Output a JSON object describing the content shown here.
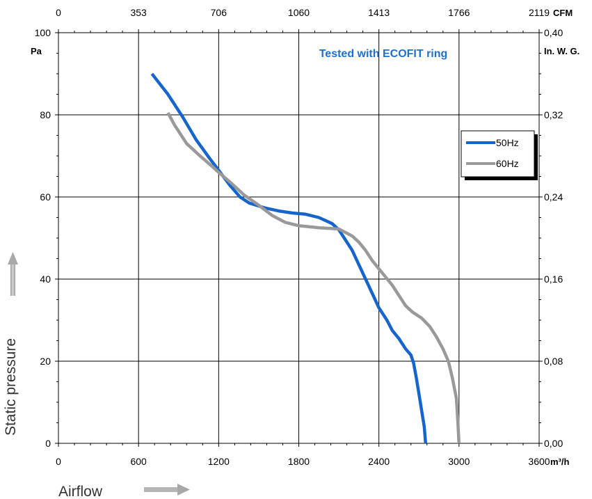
{
  "chart_data": {
    "type": "line",
    "annotation": "Tested with ECOFIT ring",
    "xlabel": "Airflow",
    "ylabel": "Static pressure",
    "x_axis": {
      "unit": "m³/h",
      "ticks": [
        "0",
        "600",
        "1200",
        "1800",
        "2400",
        "3000",
        "3600"
      ],
      "range": [
        0,
        3600
      ]
    },
    "x2_axis": {
      "unit": "CFM",
      "ticks": [
        "0",
        "353",
        "706",
        "1060",
        "1413",
        "1766",
        "2119"
      ]
    },
    "y_axis": {
      "unit": "Pa",
      "ticks": [
        "0",
        "20",
        "40",
        "60",
        "80",
        "100"
      ],
      "range": [
        0,
        100
      ]
    },
    "y2_axis": {
      "unit": "In. W. G.",
      "ticks": [
        "0,00",
        "0,08",
        "0,16",
        "0,24",
        "0,32",
        "0,40"
      ]
    },
    "grid": true,
    "legend_position": "right",
    "series": [
      {
        "name": "50Hz",
        "color": "#1565cc",
        "points": [
          [
            700,
            90
          ],
          [
            820,
            85
          ],
          [
            930,
            79.5
          ],
          [
            1030,
            74
          ],
          [
            1130,
            69.5
          ],
          [
            1200,
            66.5
          ],
          [
            1280,
            63
          ],
          [
            1360,
            60
          ],
          [
            1430,
            58.5
          ],
          [
            1550,
            57.3
          ],
          [
            1650,
            56.6
          ],
          [
            1750,
            56.1
          ],
          [
            1850,
            55.8
          ],
          [
            1950,
            55
          ],
          [
            2050,
            53.5
          ],
          [
            2100,
            52
          ],
          [
            2150,
            49.5
          ],
          [
            2200,
            47
          ],
          [
            2250,
            43.5
          ],
          [
            2300,
            40
          ],
          [
            2350,
            36.5
          ],
          [
            2400,
            33
          ],
          [
            2460,
            30
          ],
          [
            2500,
            27.5
          ],
          [
            2550,
            25.5
          ],
          [
            2600,
            23
          ],
          [
            2640,
            21.5
          ],
          [
            2660,
            19.5
          ],
          [
            2680,
            16
          ],
          [
            2700,
            12
          ],
          [
            2720,
            8
          ],
          [
            2740,
            4
          ],
          [
            2750,
            0
          ]
        ]
      },
      {
        "name": "60Hz",
        "color": "#999999",
        "points": [
          [
            820,
            80.5
          ],
          [
            870,
            77.5
          ],
          [
            960,
            73
          ],
          [
            1060,
            70
          ],
          [
            1150,
            67.5
          ],
          [
            1200,
            66
          ],
          [
            1290,
            63.5
          ],
          [
            1390,
            60.5
          ],
          [
            1500,
            58
          ],
          [
            1600,
            55.5
          ],
          [
            1700,
            53.8
          ],
          [
            1800,
            53
          ],
          [
            1950,
            52.5
          ],
          [
            2100,
            52.2
          ],
          [
            2200,
            50.5
          ],
          [
            2250,
            49
          ],
          [
            2300,
            47
          ],
          [
            2350,
            44.5
          ],
          [
            2400,
            42.5
          ],
          [
            2450,
            40.5
          ],
          [
            2500,
            38.5
          ],
          [
            2550,
            36
          ],
          [
            2600,
            33.5
          ],
          [
            2650,
            32
          ],
          [
            2720,
            30.5
          ],
          [
            2780,
            28.5
          ],
          [
            2830,
            26
          ],
          [
            2880,
            23
          ],
          [
            2920,
            20
          ],
          [
            2950,
            16
          ],
          [
            2980,
            11
          ],
          [
            2990,
            6
          ],
          [
            3000,
            0
          ]
        ]
      }
    ]
  }
}
